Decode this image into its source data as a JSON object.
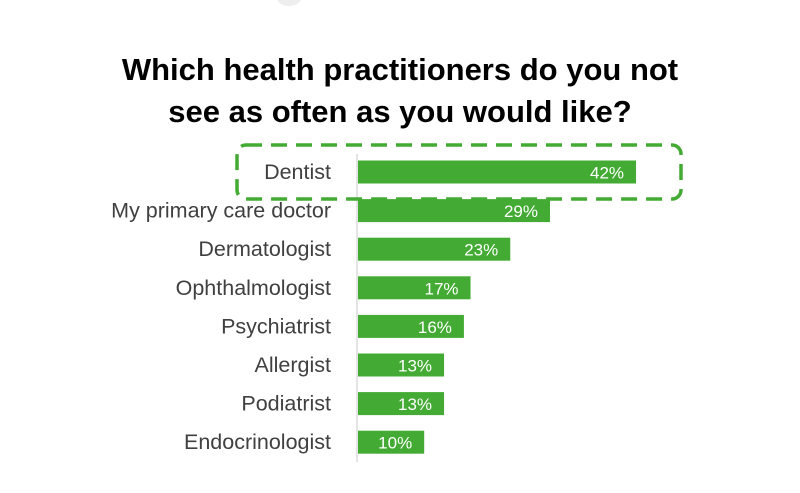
{
  "colors": {
    "bar": "#43ab33",
    "highlight_border": "#43ab33",
    "axis": "#c8c8c8",
    "category_text": "#404040",
    "value_text": "#ffffff",
    "title_text": "#000000"
  },
  "chart_data": {
    "type": "bar",
    "orientation": "horizontal",
    "title_lines": [
      "Which health practitioners do you not",
      "see as often as you would like?"
    ],
    "categories": [
      "Dentist",
      "My primary care doctor",
      "Dermatologist",
      "Ophthalmologist",
      "Psychiatrist",
      "Allergist",
      "Podiatrist",
      "Endocrinologist"
    ],
    "values": [
      42,
      29,
      23,
      17,
      16,
      13,
      13,
      10
    ],
    "value_labels": [
      "42%",
      "29%",
      "23%",
      "17%",
      "16%",
      "13%",
      "13%",
      "10%"
    ],
    "unit": "%",
    "xlim": [
      0,
      50
    ],
    "grid": false,
    "legend": "none",
    "highlighted_category": "Dentist"
  }
}
